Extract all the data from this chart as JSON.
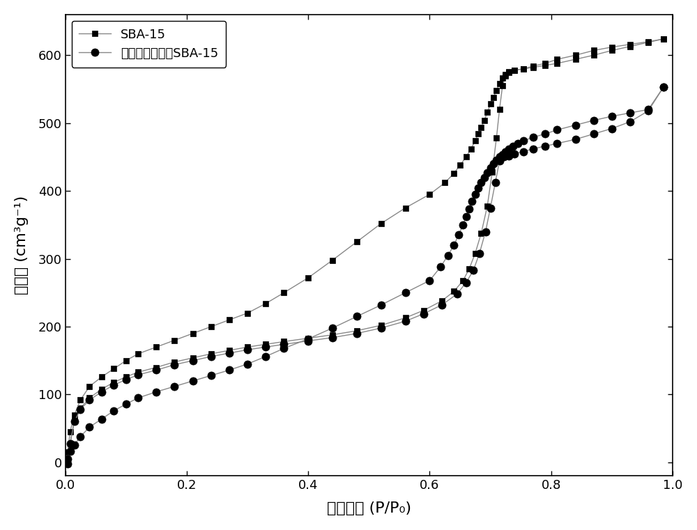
{
  "sba15_adsorption_x": [
    0.004,
    0.008,
    0.015,
    0.025,
    0.04,
    0.06,
    0.08,
    0.1,
    0.12,
    0.15,
    0.18,
    0.21,
    0.24,
    0.27,
    0.3,
    0.33,
    0.36,
    0.4,
    0.44,
    0.48,
    0.52,
    0.56,
    0.59,
    0.62,
    0.64,
    0.655,
    0.665,
    0.675,
    0.685,
    0.695,
    0.703,
    0.71,
    0.715,
    0.72,
    0.725,
    0.73,
    0.74,
    0.755,
    0.77,
    0.79,
    0.81,
    0.84,
    0.87,
    0.9,
    0.93,
    0.96,
    0.985
  ],
  "sba15_adsorption_y": [
    -2,
    28,
    62,
    80,
    95,
    108,
    118,
    126,
    133,
    140,
    148,
    154,
    160,
    165,
    170,
    174,
    178,
    183,
    188,
    194,
    202,
    213,
    224,
    238,
    252,
    268,
    285,
    308,
    338,
    378,
    428,
    478,
    520,
    555,
    570,
    575,
    578,
    580,
    582,
    585,
    588,
    594,
    600,
    607,
    613,
    619,
    624
  ],
  "sba15_desorption_x": [
    0.985,
    0.96,
    0.93,
    0.9,
    0.87,
    0.84,
    0.81,
    0.79,
    0.77,
    0.755,
    0.74,
    0.73,
    0.725,
    0.72,
    0.715,
    0.71,
    0.705,
    0.7,
    0.695,
    0.69,
    0.685,
    0.68,
    0.675,
    0.668,
    0.66,
    0.65,
    0.64,
    0.625,
    0.6,
    0.56,
    0.52,
    0.48,
    0.44,
    0.4,
    0.36,
    0.33,
    0.3,
    0.27,
    0.24,
    0.21,
    0.18,
    0.15,
    0.12,
    0.1,
    0.08,
    0.06,
    0.04,
    0.025,
    0.015,
    0.008,
    0.004
  ],
  "sba15_desorption_y": [
    624,
    620,
    616,
    612,
    607,
    600,
    594,
    588,
    584,
    580,
    578,
    576,
    572,
    566,
    558,
    548,
    538,
    528,
    516,
    504,
    494,
    484,
    474,
    462,
    450,
    438,
    426,
    412,
    395,
    375,
    352,
    325,
    298,
    272,
    250,
    234,
    220,
    210,
    200,
    190,
    180,
    170,
    160,
    150,
    138,
    126,
    112,
    92,
    70,
    45,
    15
  ],
  "modified_adsorption_x": [
    0.004,
    0.008,
    0.015,
    0.025,
    0.04,
    0.06,
    0.08,
    0.1,
    0.12,
    0.15,
    0.18,
    0.21,
    0.24,
    0.27,
    0.3,
    0.33,
    0.36,
    0.4,
    0.44,
    0.48,
    0.52,
    0.56,
    0.59,
    0.62,
    0.645,
    0.66,
    0.672,
    0.682,
    0.692,
    0.7,
    0.708,
    0.715,
    0.722,
    0.73,
    0.74,
    0.755,
    0.77,
    0.79,
    0.81,
    0.84,
    0.87,
    0.9,
    0.93,
    0.96,
    0.985
  ],
  "modified_adsorption_y": [
    -2,
    28,
    60,
    78,
    92,
    104,
    114,
    122,
    129,
    136,
    144,
    150,
    156,
    161,
    166,
    170,
    174,
    179,
    184,
    190,
    198,
    208,
    219,
    232,
    248,
    265,
    283,
    308,
    340,
    375,
    412,
    444,
    450,
    452,
    455,
    458,
    462,
    466,
    470,
    476,
    484,
    492,
    502,
    518,
    553
  ],
  "modified_desorption_x": [
    0.985,
    0.96,
    0.93,
    0.9,
    0.87,
    0.84,
    0.81,
    0.79,
    0.77,
    0.755,
    0.745,
    0.737,
    0.73,
    0.725,
    0.72,
    0.715,
    0.71,
    0.705,
    0.7,
    0.695,
    0.69,
    0.685,
    0.68,
    0.675,
    0.67,
    0.665,
    0.66,
    0.655,
    0.648,
    0.64,
    0.63,
    0.618,
    0.6,
    0.56,
    0.52,
    0.48,
    0.44,
    0.4,
    0.36,
    0.33,
    0.3,
    0.27,
    0.24,
    0.21,
    0.18,
    0.15,
    0.12,
    0.1,
    0.08,
    0.06,
    0.04,
    0.025,
    0.015,
    0.008,
    0.004
  ],
  "modified_desorption_y": [
    553,
    520,
    515,
    510,
    504,
    497,
    490,
    484,
    479,
    474,
    470,
    466,
    462,
    458,
    454,
    450,
    445,
    440,
    434,
    427,
    420,
    412,
    404,
    395,
    385,
    374,
    362,
    350,
    336,
    320,
    305,
    288,
    268,
    250,
    232,
    215,
    198,
    182,
    168,
    156,
    145,
    136,
    128,
    120,
    112,
    104,
    95,
    86,
    76,
    64,
    52,
    38,
    26,
    16,
    5
  ],
  "line_color": "#888888",
  "marker_color": "#000000",
  "xlabel": "相对压力 (P/P₀)",
  "ylabel": "吸附量 (cm³g⁻¹)",
  "legend_sba15": "SBA-15",
  "legend_modified": "萌基磺酸基改性SBA-15",
  "xlim": [
    0.0,
    1.0
  ],
  "ylim": [
    -20,
    660
  ],
  "yticks": [
    0,
    100,
    200,
    300,
    400,
    500,
    600
  ],
  "xticks": [
    0.0,
    0.2,
    0.4,
    0.6,
    0.8,
    1.0
  ],
  "background_color": "#ffffff",
  "marker_size_square": 6,
  "marker_size_circle": 8,
  "line_width": 1.0,
  "font_size_label": 16,
  "font_size_legend": 13,
  "font_size_tick": 13
}
